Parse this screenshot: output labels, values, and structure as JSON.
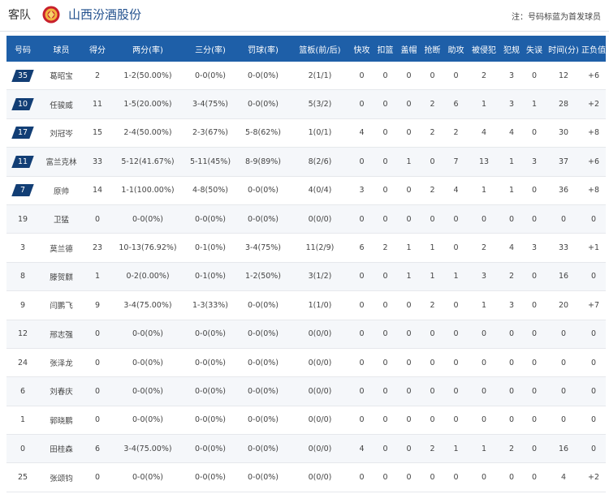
{
  "header": {
    "away_label": "客队",
    "team_name": "山西汾酒股份",
    "note": "注：号码标蓝为首发球员"
  },
  "colors": {
    "header_bg": "#1e5fa8",
    "starter_badge": "#123e75",
    "team_name": "#1f4e8c"
  },
  "table": {
    "columns": [
      "号码",
      "球员",
      "得分",
      "两分(率)",
      "三分(率)",
      "罚球(率)",
      "篮板(前/后)",
      "快攻",
      "扣篮",
      "盖帽",
      "抢断",
      "助攻",
      "被侵犯",
      "犯规",
      "失误",
      "时间(分)",
      "正负值"
    ],
    "rows": [
      {
        "num": "35",
        "starter": true,
        "player": "葛昭宝",
        "pts": "2",
        "two": "1-2(50.00%)",
        "three": "0-0(0%)",
        "ft": "0-0(0%)",
        "reb": "2(1/1)",
        "fb": "0",
        "dunk": "0",
        "blk": "0",
        "stl": "0",
        "ast": "0",
        "fd": "2",
        "pf": "3",
        "to": "0",
        "min": "12",
        "pm": "+6"
      },
      {
        "num": "10",
        "starter": true,
        "player": "任骏威",
        "pts": "11",
        "two": "1-5(20.00%)",
        "three": "3-4(75%)",
        "ft": "0-0(0%)",
        "reb": "5(3/2)",
        "fb": "0",
        "dunk": "0",
        "blk": "0",
        "stl": "2",
        "ast": "6",
        "fd": "1",
        "pf": "3",
        "to": "1",
        "min": "28",
        "pm": "+2"
      },
      {
        "num": "17",
        "starter": true,
        "player": "刘冠岑",
        "pts": "15",
        "two": "2-4(50.00%)",
        "three": "2-3(67%)",
        "ft": "5-8(62%)",
        "reb": "1(0/1)",
        "fb": "4",
        "dunk": "0",
        "blk": "0",
        "stl": "2",
        "ast": "2",
        "fd": "4",
        "pf": "4",
        "to": "0",
        "min": "30",
        "pm": "+8"
      },
      {
        "num": "11",
        "starter": true,
        "player": "富兰克林",
        "pts": "33",
        "two": "5-12(41.67%)",
        "three": "5-11(45%)",
        "ft": "8-9(89%)",
        "reb": "8(2/6)",
        "fb": "0",
        "dunk": "0",
        "blk": "1",
        "stl": "0",
        "ast": "7",
        "fd": "13",
        "pf": "1",
        "to": "3",
        "min": "37",
        "pm": "+6"
      },
      {
        "num": "7",
        "starter": true,
        "player": "原帅",
        "pts": "14",
        "two": "1-1(100.00%)",
        "three": "4-8(50%)",
        "ft": "0-0(0%)",
        "reb": "4(0/4)",
        "fb": "3",
        "dunk": "0",
        "blk": "0",
        "stl": "2",
        "ast": "4",
        "fd": "1",
        "pf": "1",
        "to": "0",
        "min": "36",
        "pm": "+8"
      },
      {
        "num": "19",
        "starter": false,
        "player": "卫猛",
        "pts": "0",
        "two": "0-0(0%)",
        "three": "0-0(0%)",
        "ft": "0-0(0%)",
        "reb": "0(0/0)",
        "fb": "0",
        "dunk": "0",
        "blk": "0",
        "stl": "0",
        "ast": "0",
        "fd": "0",
        "pf": "0",
        "to": "0",
        "min": "0",
        "pm": "0"
      },
      {
        "num": "3",
        "starter": false,
        "player": "莫兰德",
        "pts": "23",
        "two": "10-13(76.92%)",
        "three": "0-1(0%)",
        "ft": "3-4(75%)",
        "reb": "11(2/9)",
        "fb": "6",
        "dunk": "2",
        "blk": "1",
        "stl": "1",
        "ast": "0",
        "fd": "2",
        "pf": "4",
        "to": "3",
        "min": "33",
        "pm": "+1"
      },
      {
        "num": "8",
        "starter": false,
        "player": "滕贺麒",
        "pts": "1",
        "two": "0-2(0.00%)",
        "three": "0-1(0%)",
        "ft": "1-2(50%)",
        "reb": "3(1/2)",
        "fb": "0",
        "dunk": "0",
        "blk": "1",
        "stl": "1",
        "ast": "1",
        "fd": "3",
        "pf": "2",
        "to": "0",
        "min": "16",
        "pm": "0"
      },
      {
        "num": "9",
        "starter": false,
        "player": "闫鹏飞",
        "pts": "9",
        "two": "3-4(75.00%)",
        "three": "1-3(33%)",
        "ft": "0-0(0%)",
        "reb": "1(1/0)",
        "fb": "0",
        "dunk": "0",
        "blk": "0",
        "stl": "2",
        "ast": "0",
        "fd": "1",
        "pf": "3",
        "to": "0",
        "min": "20",
        "pm": "+7"
      },
      {
        "num": "12",
        "starter": false,
        "player": "邢志强",
        "pts": "0",
        "two": "0-0(0%)",
        "three": "0-0(0%)",
        "ft": "0-0(0%)",
        "reb": "0(0/0)",
        "fb": "0",
        "dunk": "0",
        "blk": "0",
        "stl": "0",
        "ast": "0",
        "fd": "0",
        "pf": "0",
        "to": "0",
        "min": "0",
        "pm": "0"
      },
      {
        "num": "24",
        "starter": false,
        "player": "张泽龙",
        "pts": "0",
        "two": "0-0(0%)",
        "three": "0-0(0%)",
        "ft": "0-0(0%)",
        "reb": "0(0/0)",
        "fb": "0",
        "dunk": "0",
        "blk": "0",
        "stl": "0",
        "ast": "0",
        "fd": "0",
        "pf": "0",
        "to": "0",
        "min": "0",
        "pm": "0"
      },
      {
        "num": "6",
        "starter": false,
        "player": "刘春庆",
        "pts": "0",
        "two": "0-0(0%)",
        "three": "0-0(0%)",
        "ft": "0-0(0%)",
        "reb": "0(0/0)",
        "fb": "0",
        "dunk": "0",
        "blk": "0",
        "stl": "0",
        "ast": "0",
        "fd": "0",
        "pf": "0",
        "to": "0",
        "min": "0",
        "pm": "0"
      },
      {
        "num": "1",
        "starter": false,
        "player": "郭晓鹏",
        "pts": "0",
        "two": "0-0(0%)",
        "three": "0-0(0%)",
        "ft": "0-0(0%)",
        "reb": "0(0/0)",
        "fb": "0",
        "dunk": "0",
        "blk": "0",
        "stl": "0",
        "ast": "0",
        "fd": "0",
        "pf": "0",
        "to": "0",
        "min": "0",
        "pm": "0"
      },
      {
        "num": "0",
        "starter": false,
        "player": "田桂森",
        "pts": "6",
        "two": "3-4(75.00%)",
        "three": "0-0(0%)",
        "ft": "0-0(0%)",
        "reb": "0(0/0)",
        "fb": "4",
        "dunk": "0",
        "blk": "0",
        "stl": "2",
        "ast": "1",
        "fd": "1",
        "pf": "2",
        "to": "0",
        "min": "16",
        "pm": "0"
      },
      {
        "num": "25",
        "starter": false,
        "player": "张颂钧",
        "pts": "0",
        "two": "0-0(0%)",
        "three": "0-0(0%)",
        "ft": "0-0(0%)",
        "reb": "0(0/0)",
        "fb": "0",
        "dunk": "0",
        "blk": "0",
        "stl": "0",
        "ast": "0",
        "fd": "0",
        "pf": "0",
        "to": "0",
        "min": "4",
        "pm": "+2"
      }
    ]
  }
}
